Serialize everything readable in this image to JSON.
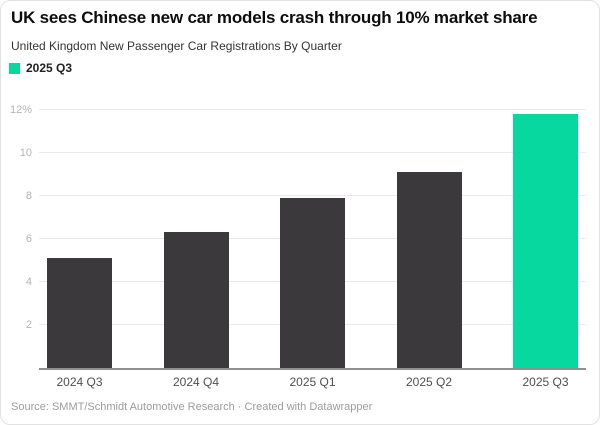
{
  "header": {
    "title": "UK sees Chinese new car models crash through 10% market share",
    "subtitle": "United Kingdom New Passenger Car Registrations By Quarter"
  },
  "legend": {
    "items": [
      {
        "label": "2025 Q3",
        "color": "#06d8a0"
      }
    ]
  },
  "chart_data": {
    "type": "bar",
    "title": "UK sees Chinese new car models crash through 10% market share",
    "subtitle": "United Kingdom New Passenger Car Registrations By Quarter",
    "categories": [
      "2024 Q3",
      "2024 Q4",
      "2025 Q1",
      "2025 Q2",
      "2025 Q3"
    ],
    "values": [
      5.1,
      6.3,
      7.9,
      9.1,
      11.8
    ],
    "unit": "%",
    "ylim": [
      0,
      12.4
    ],
    "yticks": [
      2,
      4,
      6,
      8,
      10,
      12
    ],
    "ytick_labels": [
      "2",
      "4",
      "6",
      "8",
      "10",
      "12%"
    ],
    "grid": "horizontal",
    "legend_position": "top-left",
    "default_bar_color": "#3b393c",
    "highlight_bar_color": "#06d8a0",
    "bar_colors": [
      "#3b393c",
      "#3b393c",
      "#3b393c",
      "#3b393c",
      "#06d8a0"
    ],
    "axis_line_color": "#8e8e8e",
    "gridline_color": "#eaeaea"
  },
  "footer": {
    "source": "Source: SMMT/Schmidt Automotive Research · Created with Datawrapper"
  }
}
